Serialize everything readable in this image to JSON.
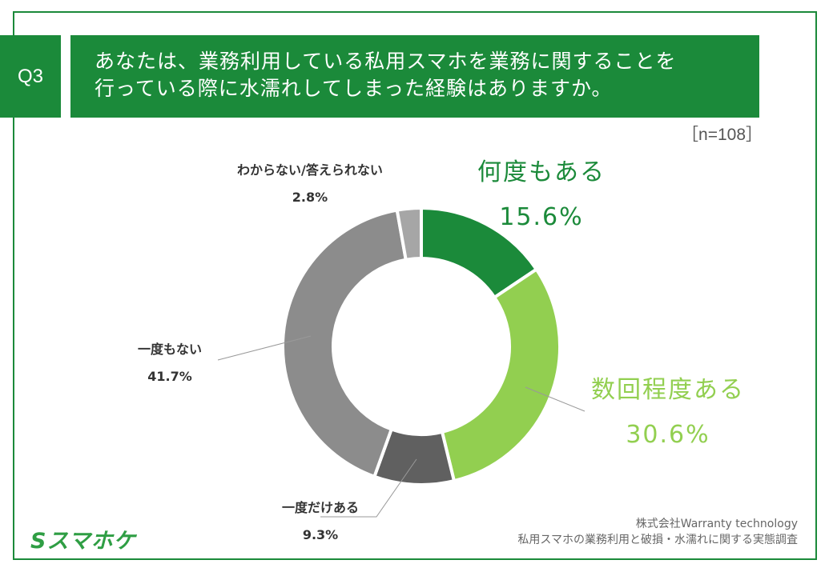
{
  "header": {
    "question_id": "Q3",
    "title_line1": "あなたは、業務利用している私用スマホを業務に関することを",
    "title_line2": "行っている際に水濡れしてしまった経験はありますか。",
    "sample_size": "［n=108］"
  },
  "colors": {
    "brand": "#1b8a3a",
    "light_green": "#92cf50",
    "gray_dark": "#606060",
    "gray_mid": "#8c8c8c",
    "gray_light": "#a6a6a6"
  },
  "chart_data": {
    "type": "pie",
    "variant": "donut",
    "slices": [
      {
        "label": "何度もある",
        "value": 15.6,
        "value_label": "15.6%",
        "color": "#1b8a3a"
      },
      {
        "label": "数回程度ある",
        "value": 30.6,
        "value_label": "30.6%",
        "color": "#92cf50"
      },
      {
        "label": "一度だけある",
        "value": 9.3,
        "value_label": "9.3%",
        "color": "#606060"
      },
      {
        "label": "一度もない",
        "value": 41.7,
        "value_label": "41.7%",
        "color": "#8c8c8c"
      },
      {
        "label": "わからない/答えられない",
        "value": 2.8,
        "value_label": "2.8%",
        "color": "#a6a6a6"
      }
    ]
  },
  "footer": {
    "company": "株式会社Warranty technology",
    "survey": "私用スマホの業務利用と破損・水濡れに関する実態調査",
    "logo": "Sスマホケ"
  }
}
